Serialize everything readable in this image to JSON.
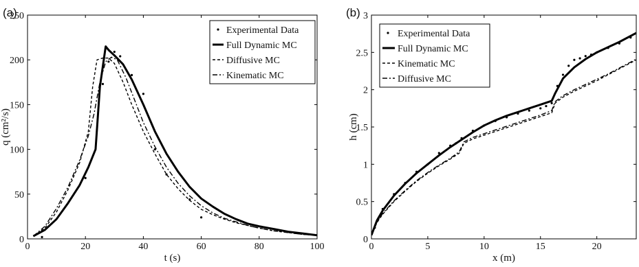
{
  "chart_data": [
    {
      "type": "line",
      "panel_label": "(a)",
      "xlabel": "t (s)",
      "ylabel": "q (cm²/s)",
      "xlim": [
        0,
        100
      ],
      "ylim": [
        0,
        250
      ],
      "xticks": [
        0,
        20,
        40,
        60,
        80,
        100
      ],
      "yticks": [
        0,
        50,
        100,
        150,
        200,
        250
      ],
      "grid": false,
      "legend_position": "top-right",
      "series": [
        {
          "name": "Experimental Data",
          "style": "points",
          "points": [
            [
              5,
              2
            ],
            [
              20,
              68
            ],
            [
              26,
              173
            ],
            [
              28,
              198
            ],
            [
              30,
              209
            ],
            [
              32,
              204
            ],
            [
              36,
              183
            ],
            [
              40,
              162
            ],
            [
              44,
              100
            ],
            [
              48,
              72
            ],
            [
              56,
              44
            ],
            [
              60,
              24
            ]
          ]
        },
        {
          "name": "Full Dynamic MC",
          "style": "thick",
          "points": [
            [
              2,
              3
            ],
            [
              6,
              10
            ],
            [
              10,
              22
            ],
            [
              14,
              40
            ],
            [
              18,
              60
            ],
            [
              21,
              80
            ],
            [
              23.5,
              100
            ],
            [
              25,
              170
            ],
            [
              27,
              215
            ],
            [
              28,
              211
            ],
            [
              30,
              205
            ],
            [
              33,
              195
            ],
            [
              36,
              178
            ],
            [
              40,
              150
            ],
            [
              44,
              120
            ],
            [
              48,
              95
            ],
            [
              52,
              75
            ],
            [
              56,
              58
            ],
            [
              60,
              45
            ],
            [
              64,
              36
            ],
            [
              68,
              28
            ],
            [
              72,
              22
            ],
            [
              76,
              17
            ],
            [
              80,
              14
            ],
            [
              85,
              11
            ],
            [
              90,
              8
            ],
            [
              95,
              6
            ],
            [
              100,
              4
            ]
          ]
        },
        {
          "name": "Diffusive MC",
          "style": "dashed",
          "points": [
            [
              2,
              3
            ],
            [
              6,
              12
            ],
            [
              10,
              30
            ],
            [
              14,
              55
            ],
            [
              18,
              85
            ],
            [
              21,
              120
            ],
            [
              22.5,
              170
            ],
            [
              24,
              200
            ],
            [
              26,
              202
            ],
            [
              28,
              202
            ],
            [
              30,
              196
            ],
            [
              33,
              175
            ],
            [
              36,
              150
            ],
            [
              40,
              120
            ],
            [
              44,
              95
            ],
            [
              48,
              72
            ],
            [
              52,
              56
            ],
            [
              56,
              43
            ],
            [
              60,
              33
            ],
            [
              64,
              27
            ],
            [
              68,
              22
            ],
            [
              72,
              18
            ],
            [
              76,
              15
            ],
            [
              80,
              12
            ],
            [
              85,
              9
            ],
            [
              90,
              7
            ],
            [
              95,
              5
            ],
            [
              100,
              4
            ]
          ]
        },
        {
          "name": "Kinematic MC",
          "style": "dashdot",
          "points": [
            [
              2,
              3
            ],
            [
              6,
              14
            ],
            [
              10,
              34
            ],
            [
              14,
              58
            ],
            [
              18,
              88
            ],
            [
              21,
              115
            ],
            [
              23,
              140
            ],
            [
              25,
              175
            ],
            [
              27,
              198
            ],
            [
              29,
              203
            ],
            [
              31,
              200
            ],
            [
              34,
              180
            ],
            [
              37,
              155
            ],
            [
              40,
              130
            ],
            [
              44,
              103
            ],
            [
              48,
              80
            ],
            [
              52,
              62
            ],
            [
              56,
              48
            ],
            [
              60,
              37
            ],
            [
              64,
              29
            ],
            [
              68,
              23
            ],
            [
              72,
              19
            ],
            [
              76,
              15
            ],
            [
              80,
              12
            ],
            [
              85,
              9
            ],
            [
              90,
              7
            ],
            [
              95,
              5
            ],
            [
              100,
              4
            ]
          ]
        }
      ]
    },
    {
      "type": "line",
      "panel_label": "(b)",
      "xlabel": "x (m)",
      "ylabel": "h (cm)",
      "xlim": [
        0,
        23.5
      ],
      "ylim": [
        0,
        3
      ],
      "xticks": [
        0,
        5,
        10,
        15,
        20
      ],
      "yticks": [
        0,
        0.5,
        1,
        1.5,
        2,
        2.5,
        3
      ],
      "ytick_labels": [
        "0",
        "0.5",
        "1",
        "1.5",
        "2",
        "2.5",
        "3"
      ],
      "grid": false,
      "legend_position": "top-left",
      "series": [
        {
          "name": "Experimental Data",
          "style": "points",
          "points": [
            [
              0.3,
              0.15
            ],
            [
              1,
              0.4
            ],
            [
              2,
              0.6
            ],
            [
              3,
              0.75
            ],
            [
              4,
              0.9
            ],
            [
              5,
              1.0
            ],
            [
              6,
              1.15
            ],
            [
              7,
              1.25
            ],
            [
              7.5,
              1.28
            ],
            [
              8,
              1.35
            ],
            [
              9,
              1.45
            ],
            [
              10,
              1.52
            ],
            [
              11,
              1.58
            ],
            [
              12,
              1.63
            ],
            [
              13,
              1.68
            ],
            [
              14,
              1.72
            ],
            [
              15,
              1.75
            ],
            [
              15.5,
              1.78
            ],
            [
              16,
              1.82
            ],
            [
              16.5,
              2.05
            ],
            [
              17,
              2.2
            ],
            [
              17.5,
              2.32
            ],
            [
              18,
              2.4
            ],
            [
              18.5,
              2.42
            ],
            [
              19,
              2.45
            ],
            [
              19.5,
              2.47
            ],
            [
              20,
              2.5
            ],
            [
              21,
              2.56
            ],
            [
              22,
              2.62
            ],
            [
              23,
              2.7
            ]
          ]
        },
        {
          "name": "Full Dynamic MC",
          "style": "thick",
          "points": [
            [
              0,
              0.05
            ],
            [
              0.5,
              0.25
            ],
            [
              1,
              0.38
            ],
            [
              2,
              0.58
            ],
            [
              3,
              0.74
            ],
            [
              4,
              0.88
            ],
            [
              5,
              1.0
            ],
            [
              6,
              1.12
            ],
            [
              7,
              1.23
            ],
            [
              8,
              1.33
            ],
            [
              9,
              1.43
            ],
            [
              10,
              1.52
            ],
            [
              11,
              1.59
            ],
            [
              12,
              1.65
            ],
            [
              13,
              1.7
            ],
            [
              14,
              1.75
            ],
            [
              15,
              1.8
            ],
            [
              16,
              1.85
            ],
            [
              16.3,
              1.95
            ],
            [
              17,
              2.15
            ],
            [
              18,
              2.3
            ],
            [
              19,
              2.41
            ],
            [
              20,
              2.5
            ],
            [
              21,
              2.57
            ],
            [
              22,
              2.64
            ],
            [
              23.5,
              2.76
            ]
          ]
        },
        {
          "name": "Kinematic MC",
          "style": "dashed",
          "points": [
            [
              0,
              0.05
            ],
            [
              0.5,
              0.22
            ],
            [
              1,
              0.33
            ],
            [
              2,
              0.5
            ],
            [
              3,
              0.64
            ],
            [
              4,
              0.77
            ],
            [
              5,
              0.88
            ],
            [
              6,
              0.98
            ],
            [
              7,
              1.07
            ],
            [
              7.8,
              1.15
            ],
            [
              8.2,
              1.28
            ],
            [
              9,
              1.34
            ],
            [
              10,
              1.39
            ],
            [
              11,
              1.44
            ],
            [
              12,
              1.49
            ],
            [
              13,
              1.54
            ],
            [
              14,
              1.59
            ],
            [
              15,
              1.64
            ],
            [
              16,
              1.69
            ],
            [
              16.3,
              1.82
            ],
            [
              17,
              1.9
            ],
            [
              18,
              1.98
            ],
            [
              19,
              2.05
            ],
            [
              20,
              2.12
            ],
            [
              21,
              2.2
            ],
            [
              22,
              2.28
            ],
            [
              23.5,
              2.4
            ]
          ]
        },
        {
          "name": "Diffusive MC",
          "style": "dashdot",
          "points": [
            [
              0,
              0.05
            ],
            [
              0.5,
              0.23
            ],
            [
              1,
              0.34
            ],
            [
              2,
              0.51
            ],
            [
              3,
              0.65
            ],
            [
              4,
              0.78
            ],
            [
              5,
              0.89
            ],
            [
              6,
              0.99
            ],
            [
              7,
              1.08
            ],
            [
              7.8,
              1.17
            ],
            [
              8.2,
              1.3
            ],
            [
              9,
              1.36
            ],
            [
              10,
              1.41
            ],
            [
              11,
              1.46
            ],
            [
              12,
              1.51
            ],
            [
              13,
              1.56
            ],
            [
              14,
              1.61
            ],
            [
              15,
              1.66
            ],
            [
              16,
              1.72
            ],
            [
              16.3,
              1.84
            ],
            [
              17,
              1.92
            ],
            [
              18,
              2.0
            ],
            [
              19,
              2.07
            ],
            [
              20,
              2.14
            ],
            [
              21,
              2.21
            ],
            [
              22,
              2.29
            ],
            [
              23.5,
              2.41
            ]
          ]
        }
      ]
    }
  ]
}
